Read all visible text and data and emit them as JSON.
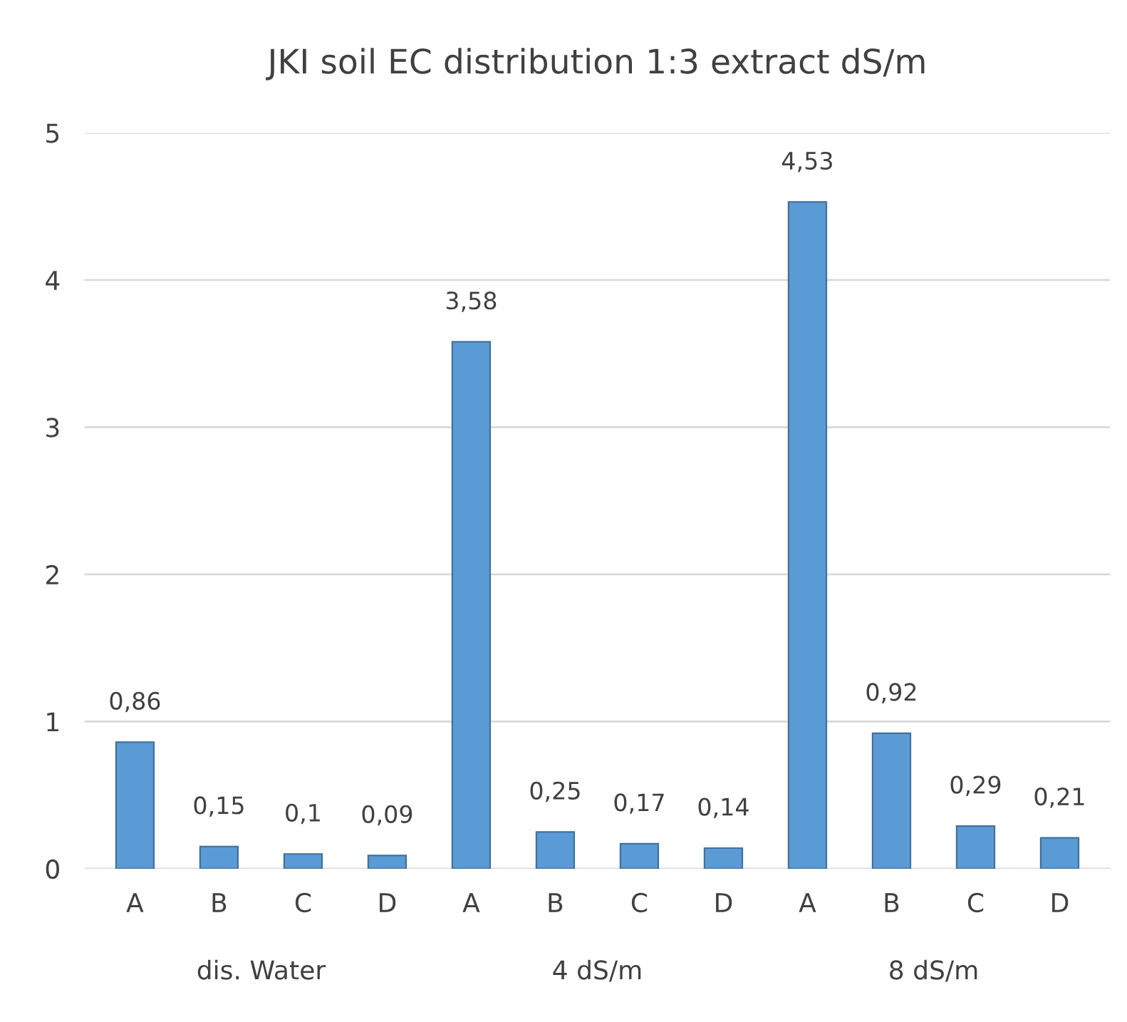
{
  "chart_data": {
    "type": "bar",
    "title": "JKI soil EC distribution 1:3 extract dS/m",
    "categories": [
      "A",
      "B",
      "C",
      "D",
      "A",
      "B",
      "C",
      "D",
      "A",
      "B",
      "C",
      "D"
    ],
    "values": [
      0.86,
      0.15,
      0.1,
      0.09,
      3.58,
      0.25,
      0.17,
      0.14,
      4.53,
      0.92,
      0.29,
      0.21
    ],
    "value_labels": [
      "0,86",
      "0,15",
      "0,1",
      "0,09",
      "3,58",
      "0,25",
      "0,17",
      "0,14",
      "4,53",
      "0,92",
      "0,29",
      "0,21"
    ],
    "color": "#5b9bd5",
    "annotations": [
      "dis. Water",
      "4 dS/m",
      "8 dS/m"
    ],
    "ylim": [
      0,
      5
    ],
    "yticks": [
      0,
      1,
      2,
      3,
      4,
      5
    ],
    "grid": "y",
    "legend": false
  }
}
